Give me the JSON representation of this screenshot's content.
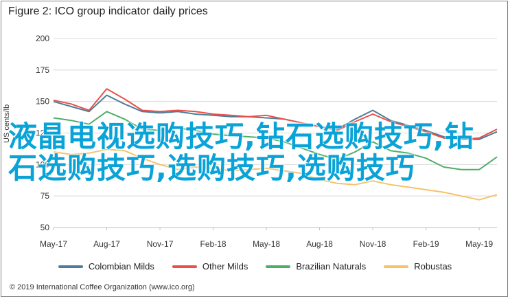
{
  "chart_data": {
    "type": "line",
    "title": "Figure 2: ICO group indicator daily prices",
    "ylabel": "US cents/lb",
    "xlabel": "",
    "ylim": [
      50,
      200
    ],
    "yticks": [
      50,
      75,
      100,
      125,
      150,
      175,
      200
    ],
    "x_tick_labels": [
      "May-17",
      "Aug-17",
      "Nov-17",
      "Feb-18",
      "May-18",
      "Aug-18",
      "Nov-18",
      "Feb-19",
      "May-19"
    ],
    "grid": true,
    "legend_position": "bottom",
    "x": [
      "May-17",
      "Jun-17",
      "Jul-17",
      "Aug-17",
      "Sep-17",
      "Oct-17",
      "Nov-17",
      "Dec-17",
      "Jan-18",
      "Feb-18",
      "Mar-18",
      "Apr-18",
      "May-18",
      "Jun-18",
      "Jul-18",
      "Aug-18",
      "Sep-18",
      "Oct-18",
      "Nov-18",
      "Dec-18",
      "Jan-19",
      "Feb-19",
      "Mar-19",
      "Apr-19",
      "May-19",
      "Jun-19"
    ],
    "series": [
      {
        "name": "Colombian Milds",
        "color": "#4f7d99",
        "values": [
          150,
          146,
          142,
          155,
          148,
          142,
          141,
          142,
          140,
          139,
          138,
          138,
          137,
          136,
          133,
          130,
          128,
          136,
          143,
          135,
          131,
          127,
          122,
          120,
          120,
          126
        ]
      },
      {
        "name": "Other Milds",
        "color": "#e8504a",
        "values": [
          151,
          148,
          143,
          160,
          152,
          143,
          142,
          143,
          142,
          140,
          139,
          138,
          139,
          136,
          133,
          130,
          127,
          134,
          140,
          134,
          130,
          126,
          121,
          120,
          121,
          128
        ]
      },
      {
        "name": "Brazilian Naturals",
        "color": "#4fad6a",
        "values": [
          137,
          135,
          132,
          142,
          136,
          128,
          127,
          129,
          127,
          124,
          123,
          122,
          121,
          118,
          113,
          108,
          104,
          110,
          118,
          111,
          109,
          105,
          98,
          96,
          96,
          106
        ]
      },
      {
        "name": "Robustas",
        "color": "#f7c16a",
        "values": [
          110,
          108,
          109,
          112,
          111,
          105,
          100,
          96,
          98,
          97,
          95,
          96,
          97,
          95,
          93,
          88,
          85,
          84,
          87,
          84,
          82,
          80,
          78,
          75,
          72,
          76
        ]
      }
    ],
    "annotations": [
      "液晶电视选购技巧,钻石选购技巧,钻石选购技巧,选购技巧,选购技巧"
    ]
  },
  "footer": {
    "source": "© 2019 International Coffee Organization (www.ico.org)"
  }
}
